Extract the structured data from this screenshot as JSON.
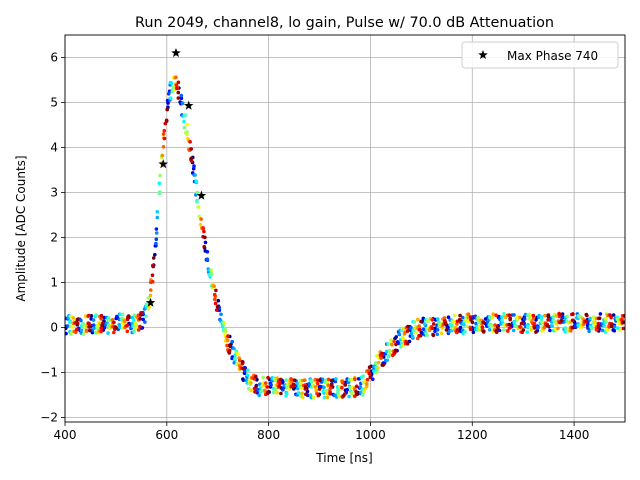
{
  "chart_data": {
    "type": "scatter",
    "title": "Run 2049, channel8, lo gain, Pulse w/ 70.0 dB Attenuation",
    "xlabel": "Time [ns]",
    "ylabel": "Amplitude [ADC Counts]",
    "xlim": [
      400,
      1500
    ],
    "ylim": [
      -2.1,
      6.5
    ],
    "xticks": [
      400,
      600,
      800,
      1000,
      1200,
      1400
    ],
    "yticks": [
      -2,
      -1,
      0,
      1,
      2,
      3,
      4,
      5,
      6
    ],
    "grid": true,
    "legend_position": "upper-right",
    "colormap": "jet",
    "pulse_profile": {
      "x": [
        400,
        540,
        555,
        565,
        575,
        585,
        595,
        605,
        615,
        625,
        635,
        645,
        655,
        665,
        675,
        685,
        695,
        705,
        720,
        740,
        760,
        780,
        800,
        850,
        900,
        950,
        985,
        1000,
        1020,
        1040,
        1060,
        1080,
        1100,
        1150,
        1200,
        1300,
        1400,
        1500
      ],
      "y": [
        0.05,
        0.1,
        0.2,
        0.5,
        1.5,
        3.0,
        4.3,
        5.2,
        5.45,
        5.2,
        4.6,
        4.0,
        3.3,
        2.5,
        1.8,
        1.2,
        0.7,
        0.3,
        -0.3,
        -0.8,
        -1.15,
        -1.3,
        -1.3,
        -1.35,
        -1.35,
        -1.35,
        -1.3,
        -1.05,
        -0.7,
        -0.45,
        -0.25,
        -0.1,
        0.0,
        0.05,
        0.1,
        0.1,
        0.1,
        0.1
      ]
    },
    "series": [
      {
        "name": "Max Phase 740",
        "marker": "star",
        "color": "#000000",
        "points": [
          {
            "x": 568,
            "y": 0.55
          },
          {
            "x": 593,
            "y": 3.63
          },
          {
            "x": 618,
            "y": 6.1
          },
          {
            "x": 643,
            "y": 4.93
          },
          {
            "x": 668,
            "y": 2.93
          }
        ]
      }
    ]
  }
}
